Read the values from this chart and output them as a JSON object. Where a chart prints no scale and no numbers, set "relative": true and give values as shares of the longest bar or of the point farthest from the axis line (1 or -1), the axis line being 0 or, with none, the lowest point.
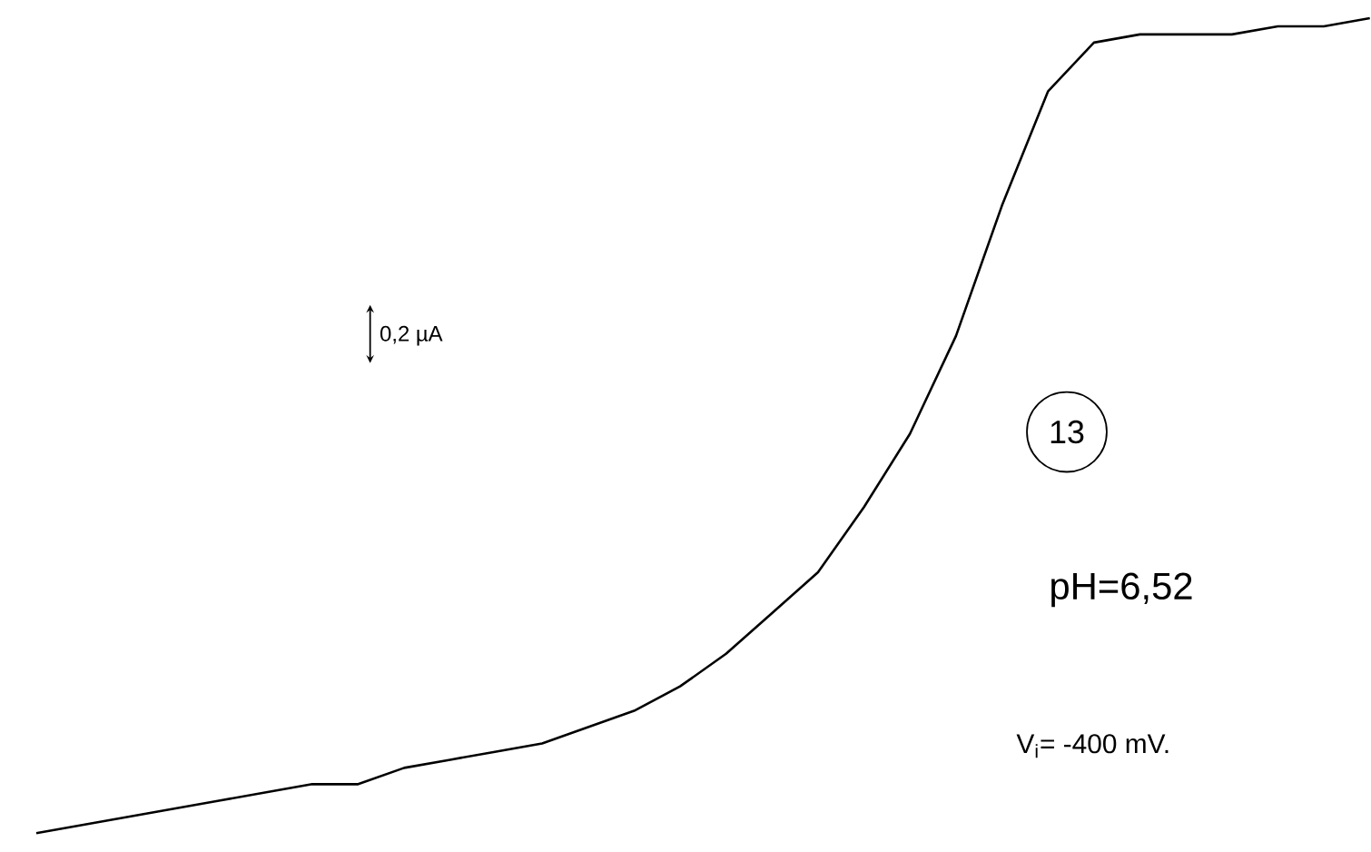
{
  "chart_data": {
    "type": "line",
    "relative": true,
    "color": "#000000",
    "categories": [
      null,
      null,
      null,
      null,
      null,
      null,
      null,
      null,
      null,
      null,
      null,
      null,
      null,
      null,
      null,
      null,
      null,
      null,
      null,
      null,
      null,
      null,
      null,
      null,
      null,
      null,
      null,
      null,
      null,
      null
    ],
    "values": [
      0,
      0.01,
      0.02,
      0.03,
      0.04,
      0.05,
      0.06,
      0.06,
      0.08,
      0.09,
      0.1,
      0.11,
      0.13,
      0.15,
      0.18,
      0.22,
      0.27,
      0.32,
      0.4,
      0.49,
      0.61,
      0.77,
      0.91,
      0.97,
      0.98,
      0.98,
      0.98,
      0.99,
      0.99,
      1
    ],
    "annotations": [
      "0,2 µA",
      "13",
      "pH=6,52",
      "V$_{i}$= -400 mV."
    ]
  }
}
